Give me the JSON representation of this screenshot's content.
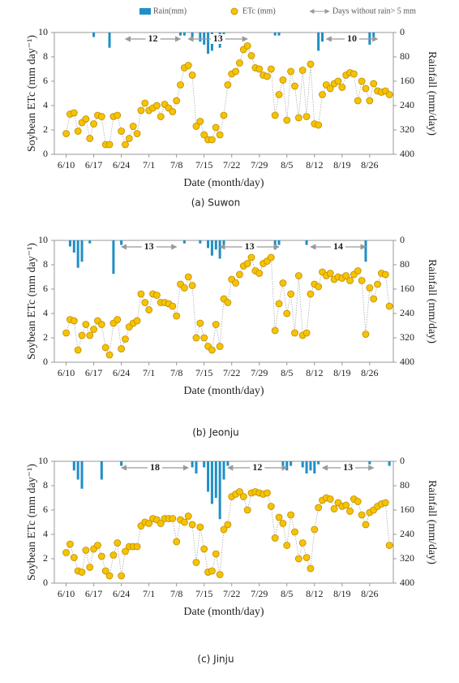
{
  "chart_data": [
    {
      "type": "combo",
      "caption": "(a) Suwon",
      "x_label": "Date (month/day)",
      "y_label": "Soybean ETc (mm day⁻¹)",
      "y2_label": "Rainfall (mm/day)",
      "legend": true,
      "dry_period_legend": "Days without rain> 5 mm",
      "xlim": [
        -3,
        83
      ],
      "ylim": [
        0,
        10
      ],
      "y2lim": [
        400,
        0
      ],
      "xticks": [
        {
          "value": 0,
          "label": "6/10"
        },
        {
          "value": 7,
          "label": "6/17"
        },
        {
          "value": 14,
          "label": "6/24"
        },
        {
          "value": 21,
          "label": "7/1"
        },
        {
          "value": 28,
          "label": "7/8"
        },
        {
          "value": 35,
          "label": "7/15"
        },
        {
          "value": 42,
          "label": "7/22"
        },
        {
          "value": 49,
          "label": "7/29"
        },
        {
          "value": 56,
          "label": "8/5"
        },
        {
          "value": 63,
          "label": "8/12"
        },
        {
          "value": 70,
          "label": "8/19"
        },
        {
          "value": 77,
          "label": "8/26"
        }
      ],
      "yticks": [
        0,
        2,
        4,
        6,
        8,
        10
      ],
      "y2ticks": [
        0,
        80,
        160,
        240,
        320,
        400
      ],
      "x": [
        0,
        1,
        2,
        3,
        4,
        5,
        6,
        7,
        8,
        9,
        10,
        11,
        12,
        13,
        14,
        15,
        16,
        17,
        18,
        19,
        20,
        21,
        22,
        23,
        24,
        25,
        26,
        27,
        28,
        29,
        30,
        31,
        32,
        33,
        34,
        35,
        36,
        37,
        38,
        39,
        40,
        41,
        42,
        43,
        44,
        45,
        46,
        47,
        48,
        49,
        50,
        51,
        52,
        53,
        54,
        55,
        56,
        57,
        58,
        59,
        60,
        61,
        62,
        63,
        64,
        65,
        66,
        67,
        68,
        69,
        70,
        71,
        72,
        73,
        74,
        75,
        76,
        77,
        78,
        79,
        80,
        81,
        82
      ],
      "series": [
        {
          "name": "Rain(mm)",
          "type": "bar",
          "axis": "y2",
          "color": "#1f8fc6",
          "x": [
            7,
            11,
            29,
            30,
            32,
            34,
            35,
            36,
            37,
            39,
            40,
            53,
            54,
            64,
            65,
            77,
            78
          ],
          "values": [
            15,
            50,
            10,
            10,
            20,
            30,
            40,
            70,
            60,
            50,
            20,
            10,
            10,
            60,
            30,
            40,
            20
          ]
        },
        {
          "name": "ETc (mm)",
          "type": "line",
          "color": "#f5c400",
          "values": [
            1.7,
            3.3,
            3.4,
            1.9,
            2.6,
            2.9,
            1.3,
            2.5,
            3.2,
            3.1,
            0.8,
            0.8,
            3.1,
            3.2,
            1.9,
            0.8,
            1.3,
            2.3,
            1.7,
            3.6,
            4.2,
            3.6,
            3.8,
            4.0,
            3.1,
            4.1,
            3.8,
            3.5,
            4.4,
            5.7,
            7.1,
            7.3,
            6.5,
            2.3,
            2.7,
            1.6,
            1.2,
            1.2,
            2.2,
            1.6,
            3.2,
            5.7,
            6.6,
            6.8,
            7.5,
            8.6,
            8.9,
            8.1,
            7.1,
            7.0,
            6.5,
            6.4,
            7.0,
            3.2,
            4.9,
            6.1,
            2.8,
            6.8,
            5.6,
            3.0,
            6.9,
            3.1,
            7.4,
            2.5,
            2.4,
            4.9,
            5.7,
            5.4,
            5.8,
            6.0,
            5.5,
            6.5,
            6.7,
            6.6,
            4.4,
            6.0,
            5.4,
            4.4,
            5.8,
            5.2,
            5.1,
            5.2,
            4.9
          ]
        }
      ],
      "dry_periods": [
        {
          "start": 15,
          "end": 29,
          "label": 12
        },
        {
          "start": 31,
          "end": 46,
          "label": 13
        },
        {
          "start": 66,
          "end": 79,
          "label": 10
        }
      ]
    },
    {
      "type": "combo",
      "caption": "(b) Jeonju",
      "x_label": "Date (month/day)",
      "y_label": "Soybean ETc (mm day⁻¹)",
      "y2_label": "Rainfall (mm/day)",
      "legend": false,
      "xlim": [
        -3,
        83
      ],
      "ylim": [
        0,
        10
      ],
      "y2lim": [
        400,
        0
      ],
      "xticks": [
        {
          "value": 0,
          "label": "6/10"
        },
        {
          "value": 7,
          "label": "6/17"
        },
        {
          "value": 14,
          "label": "6/24"
        },
        {
          "value": 21,
          "label": "7/1"
        },
        {
          "value": 28,
          "label": "7/8"
        },
        {
          "value": 35,
          "label": "7/15"
        },
        {
          "value": 42,
          "label": "7/22"
        },
        {
          "value": 49,
          "label": "7/29"
        },
        {
          "value": 56,
          "label": "8/5"
        },
        {
          "value": 63,
          "label": "8/12"
        },
        {
          "value": 70,
          "label": "8/19"
        },
        {
          "value": 77,
          "label": "8/26"
        }
      ],
      "yticks": [
        0,
        2,
        4,
        6,
        8,
        10
      ],
      "y2ticks": [
        0,
        80,
        160,
        240,
        320,
        400
      ],
      "x": [
        0,
        1,
        2,
        3,
        4,
        5,
        6,
        7,
        8,
        9,
        10,
        11,
        12,
        13,
        14,
        15,
        16,
        17,
        18,
        19,
        20,
        21,
        22,
        23,
        24,
        25,
        26,
        27,
        28,
        29,
        30,
        31,
        32,
        33,
        34,
        35,
        36,
        37,
        38,
        39,
        40,
        41,
        42,
        43,
        44,
        45,
        46,
        47,
        48,
        49,
        50,
        51,
        52,
        53,
        54,
        55,
        56,
        57,
        58,
        59,
        60,
        61,
        62,
        63,
        64,
        65,
        66,
        67,
        68,
        69,
        70,
        71,
        72,
        73,
        74,
        75,
        76,
        77,
        78,
        79,
        80,
        81,
        82
      ],
      "series": [
        {
          "name": "Rain(mm)",
          "type": "bar",
          "axis": "y2",
          "color": "#1f8fc6",
          "x": [
            1,
            2,
            3,
            4,
            6,
            12,
            14,
            30,
            34,
            36,
            37,
            38,
            39,
            40,
            53,
            54,
            61,
            76
          ],
          "values": [
            20,
            40,
            90,
            70,
            10,
            110,
            15,
            10,
            10,
            25,
            50,
            30,
            60,
            15,
            30,
            15,
            15,
            70
          ]
        },
        {
          "name": "ETc (mm)",
          "type": "line",
          "color": "#f5c400",
          "values": [
            2.4,
            3.5,
            3.4,
            1.0,
            2.2,
            3.1,
            2.2,
            2.7,
            3.4,
            3.1,
            1.2,
            0.6,
            3.2,
            3.5,
            1.1,
            1.9,
            2.9,
            3.2,
            3.4,
            5.6,
            4.9,
            4.3,
            5.6,
            5.5,
            4.9,
            4.9,
            4.8,
            4.6,
            3.8,
            6.4,
            6.1,
            7.0,
            6.3,
            2.0,
            3.2,
            2.0,
            1.3,
            1.0,
            3.1,
            1.3,
            5.2,
            4.9,
            6.8,
            6.5,
            7.2,
            7.9,
            8.1,
            8.6,
            7.5,
            7.3,
            8.1,
            8.3,
            8.6,
            2.6,
            4.8,
            6.5,
            4.0,
            5.6,
            2.4,
            7.1,
            2.2,
            2.4,
            5.6,
            6.4,
            6.2,
            7.4,
            7.1,
            7.3,
            6.8,
            7.0,
            6.9,
            7.1,
            6.7,
            7.2,
            7.5,
            6.7,
            2.3,
            6.1,
            5.2,
            6.4,
            7.3,
            7.2,
            4.6
          ]
        }
      ],
      "dry_periods": [
        {
          "start": 14,
          "end": 28,
          "label": 13
        },
        {
          "start": 39,
          "end": 54,
          "label": 13
        },
        {
          "start": 62,
          "end": 76,
          "label": 14
        }
      ]
    },
    {
      "type": "combo",
      "caption": "(c) Jinju",
      "x_label": "Date (month/day)",
      "y_label": "Soybean ETc (mm day⁻¹)",
      "y2_label": "Rainfall (mm/day)",
      "legend": false,
      "xlim": [
        -3,
        83
      ],
      "ylim": [
        0,
        10
      ],
      "y2lim": [
        400,
        0
      ],
      "xticks": [
        {
          "value": 0,
          "label": "6/10"
        },
        {
          "value": 7,
          "label": "6/17"
        },
        {
          "value": 14,
          "label": "6/24"
        },
        {
          "value": 21,
          "label": "7/1"
        },
        {
          "value": 28,
          "label": "7/8"
        },
        {
          "value": 35,
          "label": "7/15"
        },
        {
          "value": 42,
          "label": "7/22"
        },
        {
          "value": 49,
          "label": "7/29"
        },
        {
          "value": 56,
          "label": "8/5"
        },
        {
          "value": 63,
          "label": "8/12"
        },
        {
          "value": 70,
          "label": "8/19"
        },
        {
          "value": 77,
          "label": "8/26"
        }
      ],
      "yticks": [
        0,
        2,
        4,
        6,
        8,
        10
      ],
      "y2ticks": [
        0,
        80,
        160,
        240,
        320,
        400
      ],
      "x": [
        0,
        1,
        2,
        3,
        4,
        5,
        6,
        7,
        8,
        9,
        10,
        11,
        12,
        13,
        14,
        15,
        16,
        17,
        18,
        19,
        20,
        21,
        22,
        23,
        24,
        25,
        26,
        27,
        28,
        29,
        30,
        31,
        32,
        33,
        34,
        35,
        36,
        37,
        38,
        39,
        40,
        41,
        42,
        43,
        44,
        45,
        46,
        47,
        48,
        49,
        50,
        51,
        52,
        53,
        54,
        55,
        56,
        57,
        58,
        59,
        60,
        61,
        62,
        63,
        64,
        65,
        66,
        67,
        68,
        69,
        70,
        71,
        72,
        73,
        74,
        75,
        76,
        77,
        78,
        79,
        80,
        81,
        82
      ],
      "series": [
        {
          "name": "Rain(mm)",
          "type": "bar",
          "axis": "y2",
          "color": "#1f8fc6",
          "x": [
            2,
            3,
            4,
            9,
            14,
            32,
            33,
            35,
            36,
            37,
            38,
            39,
            40,
            41,
            55,
            56,
            57,
            60,
            61,
            62,
            63,
            64,
            77,
            82
          ],
          "values": [
            30,
            60,
            90,
            60,
            15,
            20,
            40,
            20,
            100,
            140,
            120,
            190,
            60,
            15,
            20,
            30,
            15,
            20,
            40,
            30,
            40,
            10,
            10,
            15
          ]
        },
        {
          "name": "ETc (mm)",
          "type": "line",
          "color": "#f5c400",
          "values": [
            2.5,
            3.2,
            2.1,
            1.0,
            0.9,
            2.7,
            1.3,
            2.8,
            3.1,
            2.2,
            1.0,
            0.6,
            2.3,
            3.3,
            0.6,
            2.6,
            3.0,
            3.0,
            3.0,
            4.7,
            5.0,
            4.9,
            5.3,
            5.2,
            4.9,
            5.3,
            5.3,
            5.3,
            3.4,
            5.2,
            5.0,
            5.5,
            4.8,
            1.7,
            4.6,
            2.8,
            0.9,
            1.0,
            2.4,
            0.7,
            4.4,
            4.8,
            7.1,
            7.3,
            7.5,
            7.1,
            6.0,
            7.4,
            7.5,
            7.4,
            7.3,
            7.4,
            6.3,
            3.7,
            5.4,
            4.9,
            3.1,
            5.6,
            4.2,
            2.0,
            3.3,
            2.1,
            1.2,
            4.4,
            6.2,
            6.8,
            7.0,
            6.9,
            6.1,
            6.6,
            6.3,
            6.4,
            5.9,
            6.9,
            6.7,
            5.6,
            4.8,
            5.8,
            6.0,
            6.3,
            6.5,
            6.6,
            3.1
          ]
        }
      ],
      "dry_periods": [
        {
          "start": 14,
          "end": 31,
          "label": 18
        },
        {
          "start": 41,
          "end": 56,
          "label": 12
        },
        {
          "start": 65,
          "end": 78,
          "label": 13
        }
      ]
    }
  ]
}
